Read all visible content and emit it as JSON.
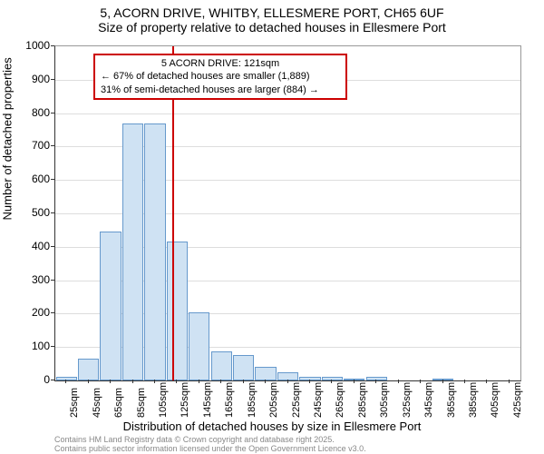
{
  "title": {
    "line1": "5, ACORN DRIVE, WHITBY, ELLESMERE PORT, CH65 6UF",
    "line2": "Size of property relative to detached houses in Ellesmere Port"
  },
  "chart": {
    "type": "histogram",
    "bar_color": "#cfe2f3",
    "bar_border_color": "#6699cc",
    "grid_color": "#dddddd",
    "background_color": "#ffffff",
    "ylim": [
      0,
      1000
    ],
    "ytick_step": 100,
    "yticks": [
      0,
      100,
      200,
      300,
      400,
      500,
      600,
      700,
      800,
      900,
      1000
    ],
    "xticks": [
      25,
      45,
      65,
      85,
      105,
      125,
      145,
      165,
      185,
      205,
      225,
      245,
      265,
      285,
      305,
      325,
      345,
      365,
      385,
      405,
      425
    ],
    "xtick_unit": "sqm",
    "categories": [
      25,
      45,
      65,
      85,
      105,
      125,
      145,
      165,
      185,
      205,
      225,
      245,
      265,
      285,
      305,
      325,
      345,
      365,
      385,
      405,
      425
    ],
    "values": [
      10,
      65,
      445,
      770,
      770,
      415,
      205,
      88,
      75,
      40,
      25,
      12,
      12,
      5,
      10,
      0,
      0,
      5,
      0,
      0,
      0
    ],
    "xlabel": "Distribution of detached houses by size in Ellesmere Port",
    "ylabel": "Number of detached properties",
    "label_fontsize": 13,
    "tick_fontsize": 12,
    "title_fontsize": 14,
    "bar_width": 0.95,
    "marker": {
      "position_sqm": 121,
      "line_color": "#cc0000",
      "box_border_color": "#cc0000",
      "box_background": "#ffffff",
      "line1": "5 ACORN DRIVE: 121sqm",
      "line2": "← 67% of detached houses are smaller (1,889)",
      "line3": "31% of semi-detached houses are larger (884) →"
    }
  },
  "footer": {
    "line1": "Contains HM Land Registry data © Crown copyright and database right 2025.",
    "line2": "Contains public sector information licensed under the Open Government Licence v3.0."
  }
}
